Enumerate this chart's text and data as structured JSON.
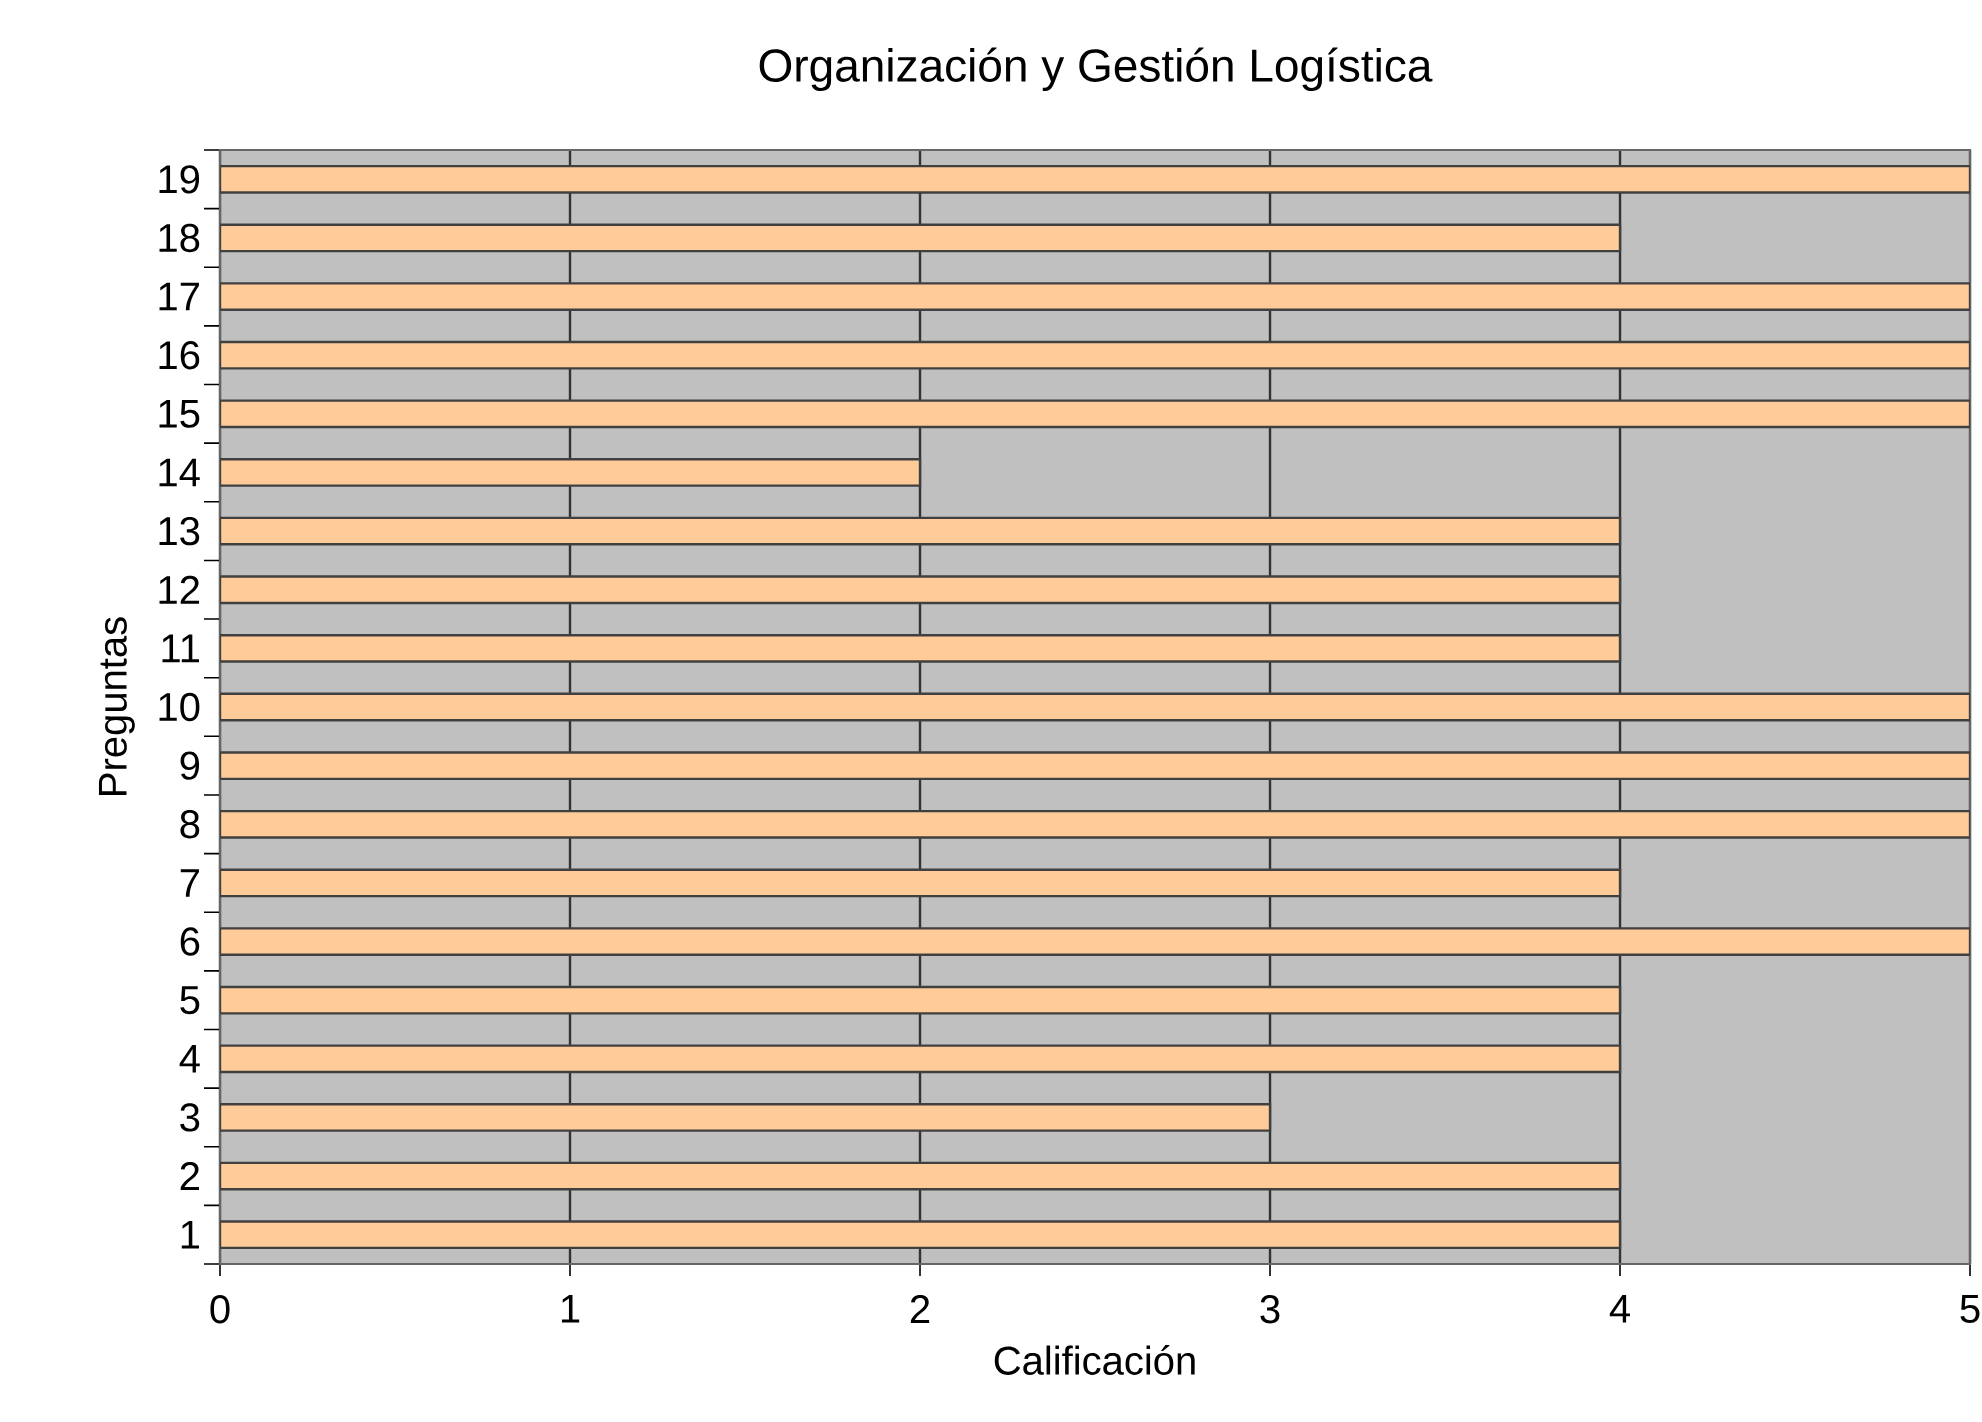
{
  "chart_data": {
    "type": "bar",
    "orientation": "horizontal",
    "title": "Organización y Gestión Logística",
    "xlabel": "Calificación",
    "ylabel": "Preguntas",
    "categories": [
      "19",
      "18",
      "17",
      "16",
      "15",
      "14",
      "13",
      "12",
      "11",
      "10",
      "9",
      "8",
      "7",
      "6",
      "5",
      "4",
      "3",
      "2",
      "1"
    ],
    "values": [
      5,
      4,
      5,
      5,
      5,
      2,
      4,
      4,
      4,
      5,
      5,
      5,
      4,
      5,
      4,
      4,
      3,
      4,
      4
    ],
    "color": "#ffcc99",
    "xlim": [
      0,
      5
    ],
    "xticks": [
      0,
      1,
      2,
      3,
      4,
      5
    ],
    "grid": "x"
  }
}
